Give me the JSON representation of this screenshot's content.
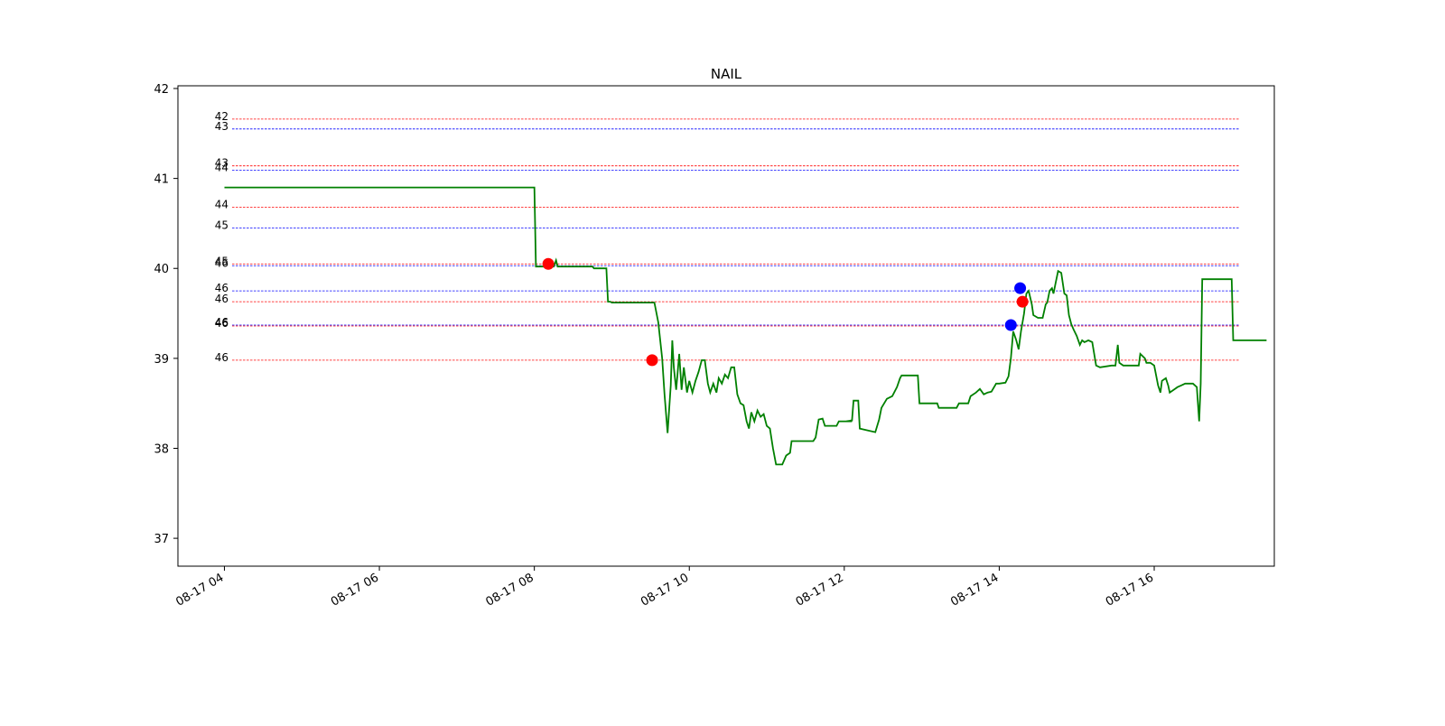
{
  "chart_data": {
    "type": "line",
    "title": "NAIL",
    "xlabel": "",
    "ylabel": "",
    "x_tick_labels": [
      "08-17 04",
      "08-17 06",
      "08-17 08",
      "08-17 10",
      "08-17 12",
      "08-17 14",
      "08-17 16"
    ],
    "x_tick_hours": [
      4,
      6,
      8,
      10,
      12,
      14,
      16
    ],
    "xlim_hours": [
      3.4,
      17.55
    ],
    "y_ticks": [
      37,
      38,
      39,
      40,
      41,
      42
    ],
    "ylim": [
      36.69,
      42.03
    ],
    "grid": false,
    "legend": "none",
    "colors": {
      "price": "#008000",
      "red": "#ff0000",
      "blue": "#0000ff"
    },
    "price_series": {
      "name": "",
      "points": [
        [
          4.0,
          40.9
        ],
        [
          8.0,
          40.9
        ],
        [
          8.02,
          40.02
        ],
        [
          8.25,
          40.02
        ],
        [
          8.28,
          40.09
        ],
        [
          8.3,
          40.02
        ],
        [
          8.75,
          40.02
        ],
        [
          8.77,
          40.0
        ],
        [
          8.93,
          40.0
        ],
        [
          8.95,
          39.63
        ],
        [
          8.98,
          39.63
        ],
        [
          9.0,
          39.62
        ],
        [
          9.55,
          39.62
        ],
        [
          9.6,
          39.4
        ],
        [
          9.65,
          39.0
        ],
        [
          9.68,
          38.6
        ],
        [
          9.72,
          38.17
        ],
        [
          9.76,
          38.7
        ],
        [
          9.78,
          39.2
        ],
        [
          9.8,
          38.9
        ],
        [
          9.83,
          38.65
        ],
        [
          9.87,
          39.05
        ],
        [
          9.9,
          38.65
        ],
        [
          9.93,
          38.9
        ],
        [
          9.97,
          38.62
        ],
        [
          10.0,
          38.75
        ],
        [
          10.04,
          38.62
        ],
        [
          10.08,
          38.75
        ],
        [
          10.12,
          38.85
        ],
        [
          10.16,
          38.98
        ],
        [
          10.2,
          38.98
        ],
        [
          10.24,
          38.72
        ],
        [
          10.27,
          38.62
        ],
        [
          10.31,
          38.72
        ],
        [
          10.35,
          38.62
        ],
        [
          10.38,
          38.78
        ],
        [
          10.42,
          38.72
        ],
        [
          10.46,
          38.82
        ],
        [
          10.5,
          38.78
        ],
        [
          10.54,
          38.9
        ],
        [
          10.58,
          38.9
        ],
        [
          10.62,
          38.6
        ],
        [
          10.66,
          38.5
        ],
        [
          10.7,
          38.48
        ],
        [
          10.74,
          38.3
        ],
        [
          10.77,
          38.22
        ],
        [
          10.8,
          38.4
        ],
        [
          10.84,
          38.3
        ],
        [
          10.88,
          38.42
        ],
        [
          10.92,
          38.35
        ],
        [
          10.96,
          38.38
        ],
        [
          11.0,
          38.25
        ],
        [
          11.04,
          38.22
        ],
        [
          11.08,
          38.0
        ],
        [
          11.12,
          37.82
        ],
        [
          11.2,
          37.82
        ],
        [
          11.25,
          37.92
        ],
        [
          11.3,
          37.95
        ],
        [
          11.32,
          38.08
        ],
        [
          11.6,
          38.08
        ],
        [
          11.63,
          38.12
        ],
        [
          11.67,
          38.32
        ],
        [
          11.72,
          38.33
        ],
        [
          11.75,
          38.25
        ],
        [
          11.9,
          38.25
        ],
        [
          11.93,
          38.3
        ],
        [
          12.05,
          38.3
        ],
        [
          12.1,
          38.3
        ],
        [
          12.02,
          38.3
        ],
        [
          12.1,
          38.31
        ],
        [
          12.08,
          38.31
        ],
        [
          12.1,
          38.31
        ],
        [
          12.12,
          38.53
        ],
        [
          12.18,
          38.53
        ],
        [
          12.2,
          38.22
        ],
        [
          12.3,
          38.2
        ],
        [
          12.4,
          38.18
        ],
        [
          12.45,
          38.32
        ],
        [
          12.48,
          38.45
        ],
        [
          12.55,
          38.55
        ],
        [
          12.62,
          38.58
        ],
        [
          12.68,
          38.68
        ],
        [
          12.72,
          38.78
        ],
        [
          12.74,
          38.81
        ],
        [
          12.95,
          38.81
        ],
        [
          12.97,
          38.5
        ],
        [
          13.2,
          38.5
        ],
        [
          13.22,
          38.45
        ],
        [
          13.3,
          38.45
        ],
        [
          13.45,
          38.45
        ],
        [
          13.48,
          38.5
        ],
        [
          13.55,
          38.5
        ],
        [
          13.6,
          38.5
        ],
        [
          13.63,
          38.58
        ],
        [
          13.7,
          38.62
        ],
        [
          13.75,
          38.66
        ],
        [
          13.8,
          38.6
        ],
        [
          13.85,
          38.62
        ],
        [
          13.9,
          38.63
        ],
        [
          13.96,
          38.72
        ],
        [
          14.0,
          38.72
        ],
        [
          14.08,
          38.73
        ],
        [
          14.12,
          38.8
        ],
        [
          14.15,
          39.0
        ],
        [
          14.18,
          39.3
        ],
        [
          14.22,
          39.2
        ],
        [
          14.25,
          39.1
        ],
        [
          14.28,
          39.3
        ],
        [
          14.32,
          39.5
        ],
        [
          14.35,
          39.72
        ],
        [
          14.38,
          39.75
        ],
        [
          14.42,
          39.6
        ],
        [
          14.44,
          39.48
        ],
        [
          14.5,
          39.45
        ],
        [
          14.56,
          39.45
        ],
        [
          14.6,
          39.6
        ],
        [
          14.62,
          39.62
        ],
        [
          14.65,
          39.75
        ],
        [
          14.68,
          39.78
        ],
        [
          14.7,
          39.72
        ],
        [
          14.73,
          39.85
        ],
        [
          14.76,
          39.97
        ],
        [
          14.8,
          39.95
        ],
        [
          14.84,
          39.72
        ],
        [
          14.87,
          39.7
        ],
        [
          14.9,
          39.48
        ],
        [
          14.93,
          39.38
        ],
        [
          14.96,
          39.32
        ],
        [
          15.0,
          39.25
        ],
        [
          15.04,
          39.15
        ],
        [
          15.07,
          39.2
        ],
        [
          15.1,
          39.18
        ],
        [
          15.15,
          39.2
        ],
        [
          15.2,
          39.18
        ],
        [
          15.25,
          38.92
        ],
        [
          15.3,
          38.9
        ],
        [
          15.45,
          38.92
        ],
        [
          15.5,
          38.92
        ],
        [
          15.53,
          39.15
        ],
        [
          15.55,
          38.95
        ],
        [
          15.6,
          38.92
        ],
        [
          15.8,
          38.92
        ],
        [
          15.82,
          39.05
        ],
        [
          15.88,
          39.0
        ],
        [
          15.9,
          38.95
        ],
        [
          15.95,
          38.95
        ],
        [
          16.0,
          38.92
        ],
        [
          16.05,
          38.7
        ],
        [
          16.08,
          38.62
        ],
        [
          16.1,
          38.75
        ],
        [
          16.15,
          38.78
        ],
        [
          16.18,
          38.7
        ],
        [
          16.2,
          38.62
        ],
        [
          16.25,
          38.65
        ],
        [
          16.3,
          38.68
        ],
        [
          16.35,
          38.7
        ],
        [
          16.4,
          38.72
        ],
        [
          16.5,
          38.72
        ],
        [
          16.55,
          38.68
        ],
        [
          16.58,
          38.3
        ],
        [
          16.6,
          38.72
        ],
        [
          16.62,
          39.88
        ],
        [
          17.0,
          39.88
        ],
        [
          17.02,
          39.2
        ],
        [
          17.45,
          39.2
        ]
      ]
    },
    "markers": [
      {
        "x": 8.18,
        "y": 40.05,
        "color": "red"
      },
      {
        "x": 9.52,
        "y": 38.98,
        "color": "red"
      },
      {
        "x": 14.15,
        "y": 39.37,
        "color": "blue"
      },
      {
        "x": 14.27,
        "y": 39.78,
        "color": "blue"
      },
      {
        "x": 14.3,
        "y": 39.63,
        "color": "red"
      }
    ],
    "reference_lines": [
      {
        "y": 41.66,
        "label": "42",
        "color": "red"
      },
      {
        "y": 41.55,
        "label": "43",
        "color": "blue"
      },
      {
        "y": 41.14,
        "label": "43",
        "color": "red"
      },
      {
        "y": 41.09,
        "label": "44",
        "color": "blue"
      },
      {
        "y": 40.68,
        "label": "44",
        "color": "red"
      },
      {
        "y": 40.45,
        "label": "45",
        "color": "blue"
      },
      {
        "y": 40.05,
        "label": "45",
        "color": "red"
      },
      {
        "y": 40.03,
        "label": "46",
        "color": "blue"
      },
      {
        "y": 39.75,
        "label": "46",
        "color": "blue"
      },
      {
        "y": 39.63,
        "label": "46",
        "color": "red"
      },
      {
        "y": 39.37,
        "label": "46",
        "color": "blue"
      },
      {
        "y": 39.36,
        "label": "46",
        "color": "red"
      },
      {
        "y": 38.98,
        "label": "46",
        "color": "red"
      }
    ]
  }
}
